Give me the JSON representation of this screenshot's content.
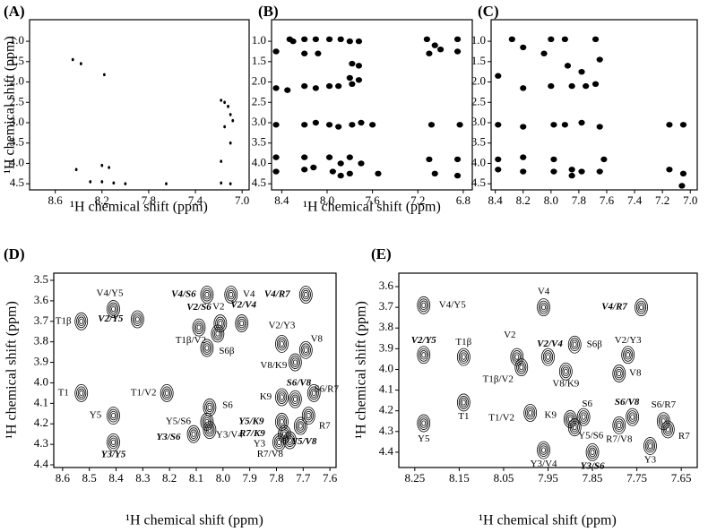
{
  "chart_data": [
    {
      "type": "scatter",
      "title": "(A)",
      "xlabel": "¹H chemical shift (ppm)",
      "ylabel": "¹H chemical shift (ppm)",
      "xlim": [
        8.82,
        6.94
      ],
      "ylim": [
        4.65,
        0.47
      ],
      "xticks": [
        8.6,
        8.2,
        7.8,
        7.4,
        {
          "value": 7,
          "label": "7.0"
        }
      ],
      "yticks": [
        {
          "value": 1,
          "label": "1.0"
        },
        1.5,
        {
          "value": 2,
          "label": "2.0"
        },
        2.5,
        {
          "value": 3,
          "label": "3.0"
        },
        3.5,
        {
          "value": 4,
          "label": "4.0"
        },
        4.5
      ],
      "x": [
        8.45,
        8.38,
        8.18,
        7.18,
        7.15,
        7.12,
        7.1,
        7.08,
        7.15,
        7.1,
        7.18,
        8.42,
        8.2,
        8.14,
        8.3,
        8.2,
        8.1,
        8.0,
        7.65,
        7.18,
        7.1
      ],
      "values": [
        1.45,
        1.55,
        1.82,
        2.45,
        2.5,
        2.6,
        2.8,
        2.95,
        3.1,
        3.5,
        3.95,
        4.15,
        4.05,
        4.1,
        4.45,
        4.45,
        4.48,
        4.5,
        4.5,
        4.48,
        4.5
      ],
      "color": "#000000"
    },
    {
      "type": "scatter",
      "title": "(B)",
      "xlabel": "¹H chemical shift (ppm)",
      "xlim": [
        8.49,
        6.72
      ],
      "ylim": [
        4.65,
        0.47
      ],
      "xticks": [
        8.4,
        {
          "value": 8,
          "label": "8.0"
        },
        7.6,
        7.2,
        6.8
      ],
      "yticks": [
        {
          "value": 1,
          "label": "1.0"
        },
        1.5,
        {
          "value": 2,
          "label": "2.0"
        },
        2.5,
        {
          "value": 3,
          "label": "3.0"
        },
        3.5,
        {
          "value": 4,
          "label": "4.0"
        },
        4.5
      ],
      "x": [
        8.45,
        8.45,
        8.45,
        8.45,
        8.45,
        8.33,
        8.3,
        8.35,
        8.2,
        8.2,
        8.2,
        8.2,
        8.2,
        8.2,
        8.1,
        8.08,
        8.1,
        8.1,
        8.12,
        7.98,
        7.98,
        7.98,
        7.98,
        7.95,
        7.88,
        7.9,
        7.9,
        7.88,
        7.88,
        7.8,
        7.78,
        7.8,
        7.78,
        7.78,
        7.8,
        7.8,
        7.72,
        7.72,
        7.72,
        7.7,
        7.7,
        7.6,
        7.55,
        7.12,
        7.1,
        7.05,
        7.08,
        7.1,
        7.05,
        7.0,
        6.85,
        6.85,
        6.83,
        6.85,
        6.85
      ],
      "values": [
        1.25,
        2.15,
        3.05,
        3.85,
        4.2,
        0.95,
        1.0,
        2.2,
        0.95,
        1.3,
        2.1,
        3.05,
        3.85,
        4.15,
        0.95,
        1.3,
        2.15,
        3.0,
        4.1,
        0.95,
        2.1,
        3.05,
        3.85,
        4.2,
        0.95,
        2.1,
        3.1,
        4.0,
        4.3,
        1.0,
        1.55,
        1.9,
        2.05,
        3.05,
        3.85,
        4.25,
        1.0,
        1.6,
        1.95,
        3.0,
        4.0,
        3.05,
        4.25,
        0.95,
        1.3,
        1.1,
        3.05,
        3.9,
        4.25,
        1.2,
        0.95,
        1.25,
        3.05,
        3.9,
        4.3
      ],
      "color": "#000000"
    },
    {
      "type": "scatter",
      "title": "(C)",
      "xlim": [
        8.43,
        6.95
      ],
      "ylim": [
        4.65,
        0.47
      ],
      "xticks": [
        8.4,
        8.2,
        {
          "value": 8,
          "label": "8.0"
        },
        7.8,
        7.6,
        7.4,
        7.2,
        {
          "value": 7,
          "label": "7.0"
        }
      ],
      "yticks": [
        {
          "value": 1,
          "label": "1.0"
        },
        1.5,
        {
          "value": 2,
          "label": "2.0"
        },
        2.5,
        {
          "value": 3,
          "label": "3.0"
        },
        3.5,
        {
          "value": 4,
          "label": "4.0"
        },
        4.5
      ],
      "x": [
        8.38,
        8.38,
        8.38,
        8.38,
        8.28,
        8.2,
        8.2,
        8.2,
        8.2,
        8.2,
        8.0,
        8.05,
        8.0,
        7.98,
        7.98,
        7.98,
        7.9,
        7.88,
        7.85,
        7.9,
        7.85,
        7.85,
        7.78,
        7.75,
        7.78,
        7.78,
        7.68,
        7.65,
        7.68,
        7.65,
        7.62,
        7.65,
        7.15,
        7.15,
        7.05,
        7.05,
        7.06
      ],
      "values": [
        1.85,
        3.05,
        3.9,
        4.15,
        0.95,
        1.15,
        2.15,
        3.1,
        3.85,
        4.2,
        0.95,
        1.3,
        2.1,
        3.05,
        3.9,
        4.2,
        0.95,
        1.6,
        2.1,
        3.05,
        4.15,
        4.3,
        1.75,
        2.1,
        3.0,
        4.2,
        0.95,
        1.45,
        2.05,
        3.1,
        3.9,
        4.2,
        3.05,
        4.15,
        3.05,
        4.25,
        4.55
      ],
      "color": "#000000"
    },
    {
      "type": "contour",
      "title": "(D)",
      "xlabel": "¹H chemical shift (ppm)",
      "ylabel": "¹H chemical shift (ppm)",
      "xlim": [
        8.633,
        7.577
      ],
      "ylim": [
        4.413,
        3.465
      ],
      "xticks": [
        8.6,
        8.5,
        8.4,
        8.3,
        8.2,
        8.1,
        {
          "value": 8,
          "label": "8.0"
        },
        7.9,
        7.8,
        7.7,
        7.6
      ],
      "yticks": [
        3.5,
        3.6,
        3.7,
        3.8,
        3.9,
        {
          "value": 4,
          "label": "4.0"
        },
        4.1,
        4.2,
        4.3,
        4.4
      ],
      "x": [
        8.41,
        8.06,
        7.97,
        7.69,
        8.53,
        8.32,
        8.01,
        8.09,
        7.93,
        8.02,
        8.06,
        7.78,
        7.69,
        7.73,
        8.53,
        8.21,
        8.41,
        8.05,
        8.06,
        7.78,
        7.73,
        7.66,
        7.68,
        7.78,
        7.77,
        7.71,
        7.75,
        7.79,
        8.41,
        8.11,
        8.05
      ],
      "values": [
        3.64,
        3.57,
        3.57,
        3.57,
        3.7,
        3.69,
        3.71,
        3.73,
        3.71,
        3.76,
        3.83,
        3.81,
        3.84,
        3.9,
        4.05,
        4.05,
        4.16,
        4.12,
        4.19,
        4.07,
        4.08,
        4.05,
        4.16,
        4.19,
        4.25,
        4.21,
        4.28,
        4.29,
        4.29,
        4.25,
        4.23
      ],
      "labels": [
        "V4/Y5",
        "V4/S6",
        "V4",
        "V4/R7",
        "T1β",
        "V2/Y5",
        "V2",
        "V2/S6",
        "V2/V4",
        "T1β/V2",
        "S6β",
        "V2/Y3",
        "V8",
        "V8/K9",
        "T1",
        "T1/V2",
        "Y5",
        "S6",
        "Y5/S6",
        "K9",
        "S6/V8",
        "S6/R7",
        "R7",
        "Y5/K9",
        "R7/K9",
        "Y5/V8",
        "R7/V8",
        "Y3",
        "Y3/Y5",
        "Y3/S6",
        "Y3/V4"
      ],
      "label_colors": [
        "#000000",
        "#2e3192",
        "#000000",
        "#e31e24",
        "#000000",
        "#e31e24",
        "#000000",
        "#1b9e3e",
        "#2e3192",
        "#000000",
        "#000000",
        "#000000",
        "#000000",
        "#000000",
        "#000000",
        "#000000",
        "#000000",
        "#000000",
        "#000000",
        "#000000",
        "#2e3192",
        "#000000",
        "#000000",
        "#1b9e3e",
        "#2e3192",
        "#e31e24",
        "#000000",
        "#000000",
        "#2e3192",
        "#e31e24",
        "#000000"
      ],
      "color": "#000000"
    },
    {
      "type": "contour",
      "title": "(E)",
      "xlabel": "¹H chemical shift (ppm)",
      "ylabel": "¹H chemical shift (ppm)",
      "xlim": [
        8.286,
        7.614
      ],
      "ylim": [
        4.474,
        3.535
      ],
      "xticks": [
        8.25,
        8.15,
        8.05,
        7.95,
        7.85,
        7.75,
        7.65
      ],
      "yticks": [
        3.6,
        3.7,
        3.8,
        3.9,
        {
          "value": 4,
          "label": "4.0"
        },
        4.1,
        4.2,
        4.3,
        4.4
      ],
      "x": [
        8.23,
        7.96,
        7.74,
        8.23,
        8.14,
        8.02,
        8.01,
        7.95,
        7.89,
        7.91,
        7.77,
        7.79,
        8.14,
        7.99,
        8.23,
        7.9,
        7.87,
        7.89,
        7.76,
        7.79,
        7.69,
        7.68,
        7.72,
        7.96,
        7.85
      ],
      "values": [
        3.69,
        3.7,
        3.7,
        3.93,
        3.94,
        3.94,
        3.99,
        3.94,
        3.88,
        4.01,
        3.93,
        4.02,
        4.16,
        4.21,
        4.26,
        4.24,
        4.23,
        4.28,
        4.23,
        4.27,
        4.25,
        4.29,
        4.37,
        4.39,
        4.4
      ],
      "labels": [
        "V4/Y5",
        "V4",
        "V4/R7",
        "V2/Y5",
        "T1β",
        "V2",
        "T1β/V2",
        "V2/V4",
        "S6β",
        "V8/K9",
        "V2/Y3",
        "V8",
        "T1",
        "T1/V2",
        "Y5",
        "K9",
        "S6",
        "Y5/S6",
        "S6/V8",
        "R7/V8",
        "S6/R7",
        "R7",
        "Y3",
        "Y3/V4",
        "Y3/S6"
      ],
      "label_colors": [
        "#000000",
        "#000000",
        "#e31e24",
        "#e31e24",
        "#000000",
        "#000000",
        "#000000",
        "#2e3192",
        "#000000",
        "#000000",
        "#000000",
        "#000000",
        "#000000",
        "#000000",
        "#000000",
        "#000000",
        "#000000",
        "#000000",
        "#2e3192",
        "#000000",
        "#000000",
        "#000000",
        "#000000",
        "#000000",
        "#e31e24"
      ],
      "color": "#000000"
    }
  ]
}
